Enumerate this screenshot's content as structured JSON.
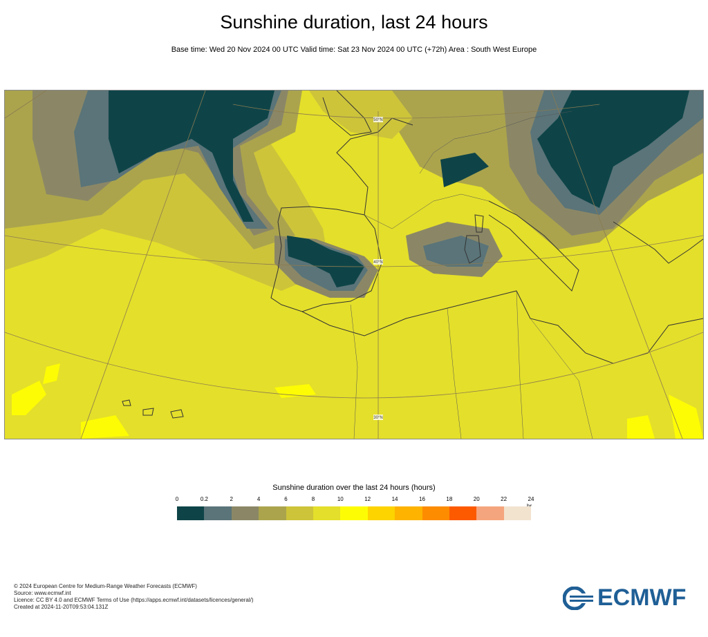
{
  "header": {
    "title": "Sunshine duration, last 24 hours",
    "subtitle": "Base time: Wed 20 Nov 2024 00 UTC Valid time: Sat 23 Nov 2024 00 UTC (+72h) Area : South West Europe"
  },
  "map": {
    "lat_labels": [
      "50°N",
      "40°N",
      "30°N"
    ],
    "background_color": "#e4df2a"
  },
  "legend": {
    "title": "Sunshine duration over the last 24 hours (hours)",
    "ticks": [
      "0",
      "0.2",
      "2",
      "4",
      "6",
      "8",
      "10",
      "12",
      "14",
      "16",
      "18",
      "20",
      "22",
      "24"
    ],
    "unit": "hr",
    "colors": [
      "#0e4448",
      "#5a7479",
      "#8b8766",
      "#aba44d",
      "#cdc43a",
      "#e4df2a",
      "#fdfc04",
      "#fdd300",
      "#fdb300",
      "#fd8c00",
      "#fd5a00",
      "#f5a57d",
      "#f2e3cf"
    ]
  },
  "footer": {
    "lines": [
      "© 2024 European Centre for Medium-Range Weather Forecasts (ECMWF)",
      "Source: www.ecmwf.int",
      "Licence: CC BY 4.0 and ECMWF Terms of Use (https://apps.ecmwf.int/datasets/licences/general/)",
      "Created at 2024-11-20T09:53:04.131Z"
    ]
  },
  "logo": {
    "text": "ECMWF"
  }
}
